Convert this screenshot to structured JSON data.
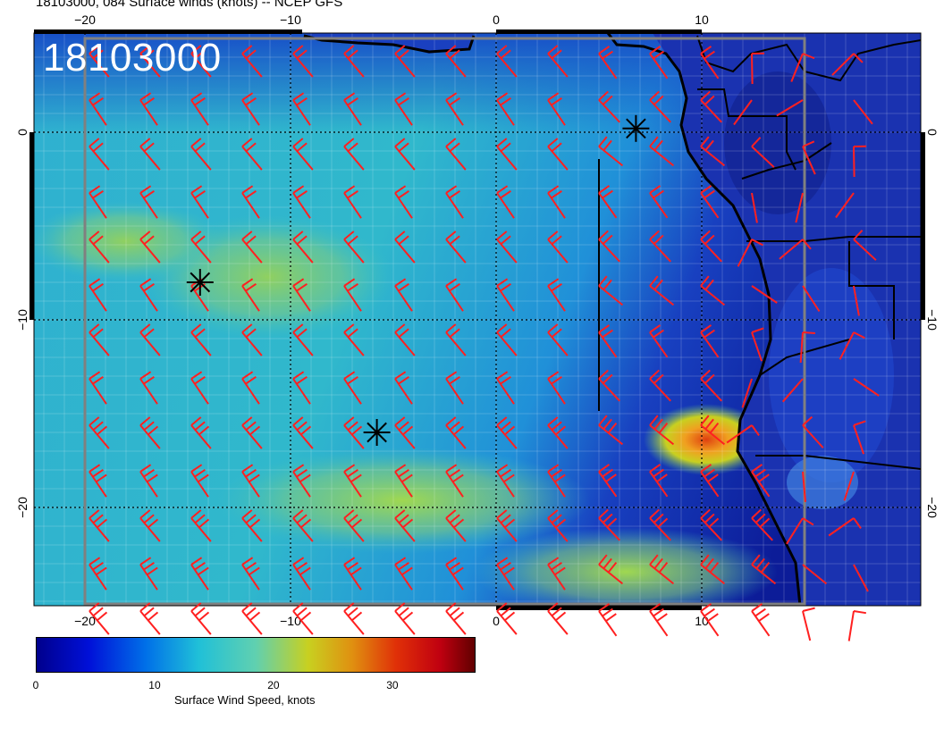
{
  "title": "18103000, 084 Surface winds (knots) -- NCEP GFS",
  "stamp": "18103000",
  "lon_axis": {
    "ticks": [
      -20,
      -10,
      0,
      10
    ],
    "tick_labels": [
      "−20",
      "−10",
      "0",
      "10"
    ],
    "range": [
      -22.5,
      20.5
    ]
  },
  "lat_axis": {
    "ticks": [
      0,
      -10,
      -20
    ],
    "tick_labels": [
      "0",
      "−10",
      "−20"
    ],
    "range": [
      -25,
      5
    ]
  },
  "colorbar": {
    "label": "Surface Wind Speed, knots",
    "ticks": [
      0,
      10,
      20,
      30
    ],
    "tick_labels": [
      "0",
      "10",
      "20",
      "30"
    ],
    "range": [
      0,
      37
    ]
  },
  "colors": {
    "barb": "#ff2020",
    "coast": "#000000",
    "frame": "#808080"
  },
  "markers": [
    {
      "name": "asterisk",
      "lon": -14.4,
      "lat": -8.0
    },
    {
      "name": "asterisk",
      "lon": -5.8,
      "lat": -16.0
    },
    {
      "name": "asterisk",
      "lon": 6.8,
      "lat": 0.2
    }
  ]
}
